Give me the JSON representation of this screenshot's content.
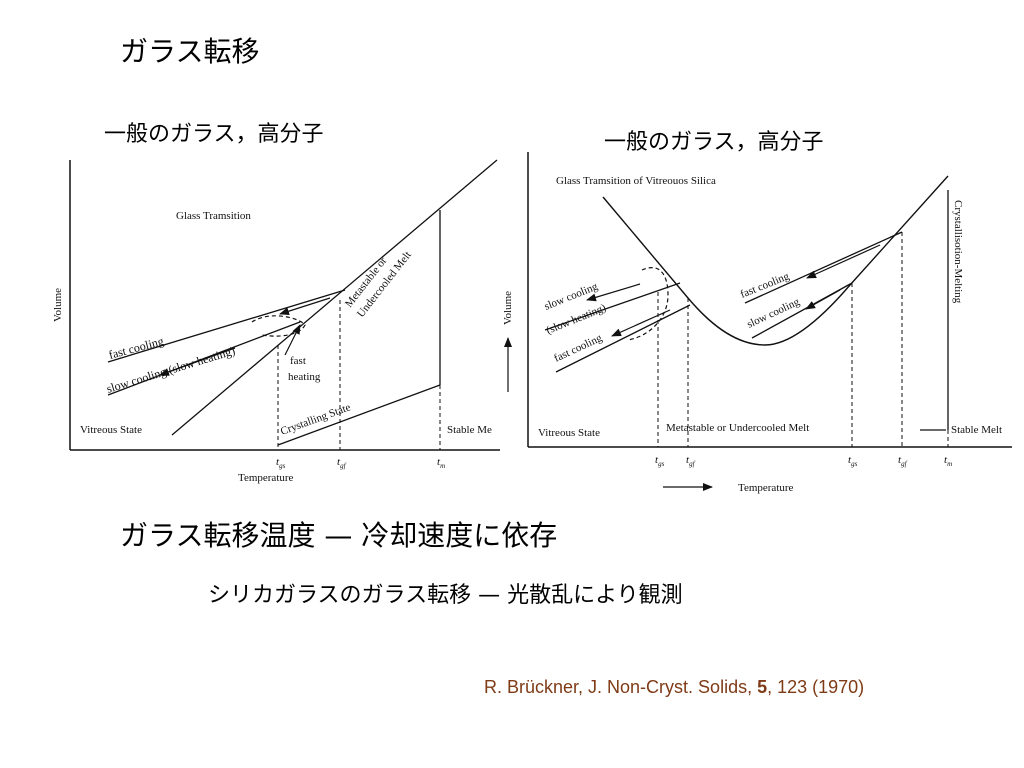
{
  "title": "ガラス転移",
  "left_label": "一般のガラス，高分子",
  "right_label": "一般のガラス，高分子",
  "headline": "ガラス転移温度 — 冷却速度に依存",
  "silica_line": "シリカガラスのガラス転移 — 光散乱により観測",
  "citation": {
    "pre": "R. Brückner, J. Non-Cryst. Solids, ",
    "vol": "5",
    "post": ", 123 (1970)"
  },
  "left_diagram": {
    "title": "Glass Tramsition",
    "ylabel": "Volume",
    "xlabel": "Temperature",
    "fast_cooling": "fast cooling",
    "slow_cooling": "slow cooling (slow heating)",
    "fast_heating_1": "fast",
    "fast_heating_2": "heating",
    "metastable_1": "Metastable or",
    "metastable_2": "Undercooled Melt",
    "crystalling": "Crystalling State",
    "vitreous": "Vitreous State",
    "stable": "Stable Me",
    "ticks": [
      "t",
      "t",
      "t"
    ],
    "tick_subs": [
      "gs",
      "gf",
      "m"
    ]
  },
  "right_diagram": {
    "title": "Glass Tramsition of Vitreouos Silica",
    "ylabel": "Volume",
    "xlabel": "Temperature",
    "slow_cooling": "slow cooling",
    "slow_heating": "(slow heating)",
    "fast_cooling_left": "fast cooling",
    "fast_cooling_right": "fast cooling",
    "slow_cooling_right": "slow cooling",
    "crystallization": "Crystallisotion-Melting",
    "vitreous": "Vitreous State",
    "metastable": "Metastable or Undercooled Melt",
    "stable": "Stable Melt",
    "ticks": [
      "t",
      "t",
      "t",
      "t",
      "t"
    ],
    "tick_subs": [
      "gs",
      "gf",
      "gs",
      "gf",
      "m"
    ]
  }
}
